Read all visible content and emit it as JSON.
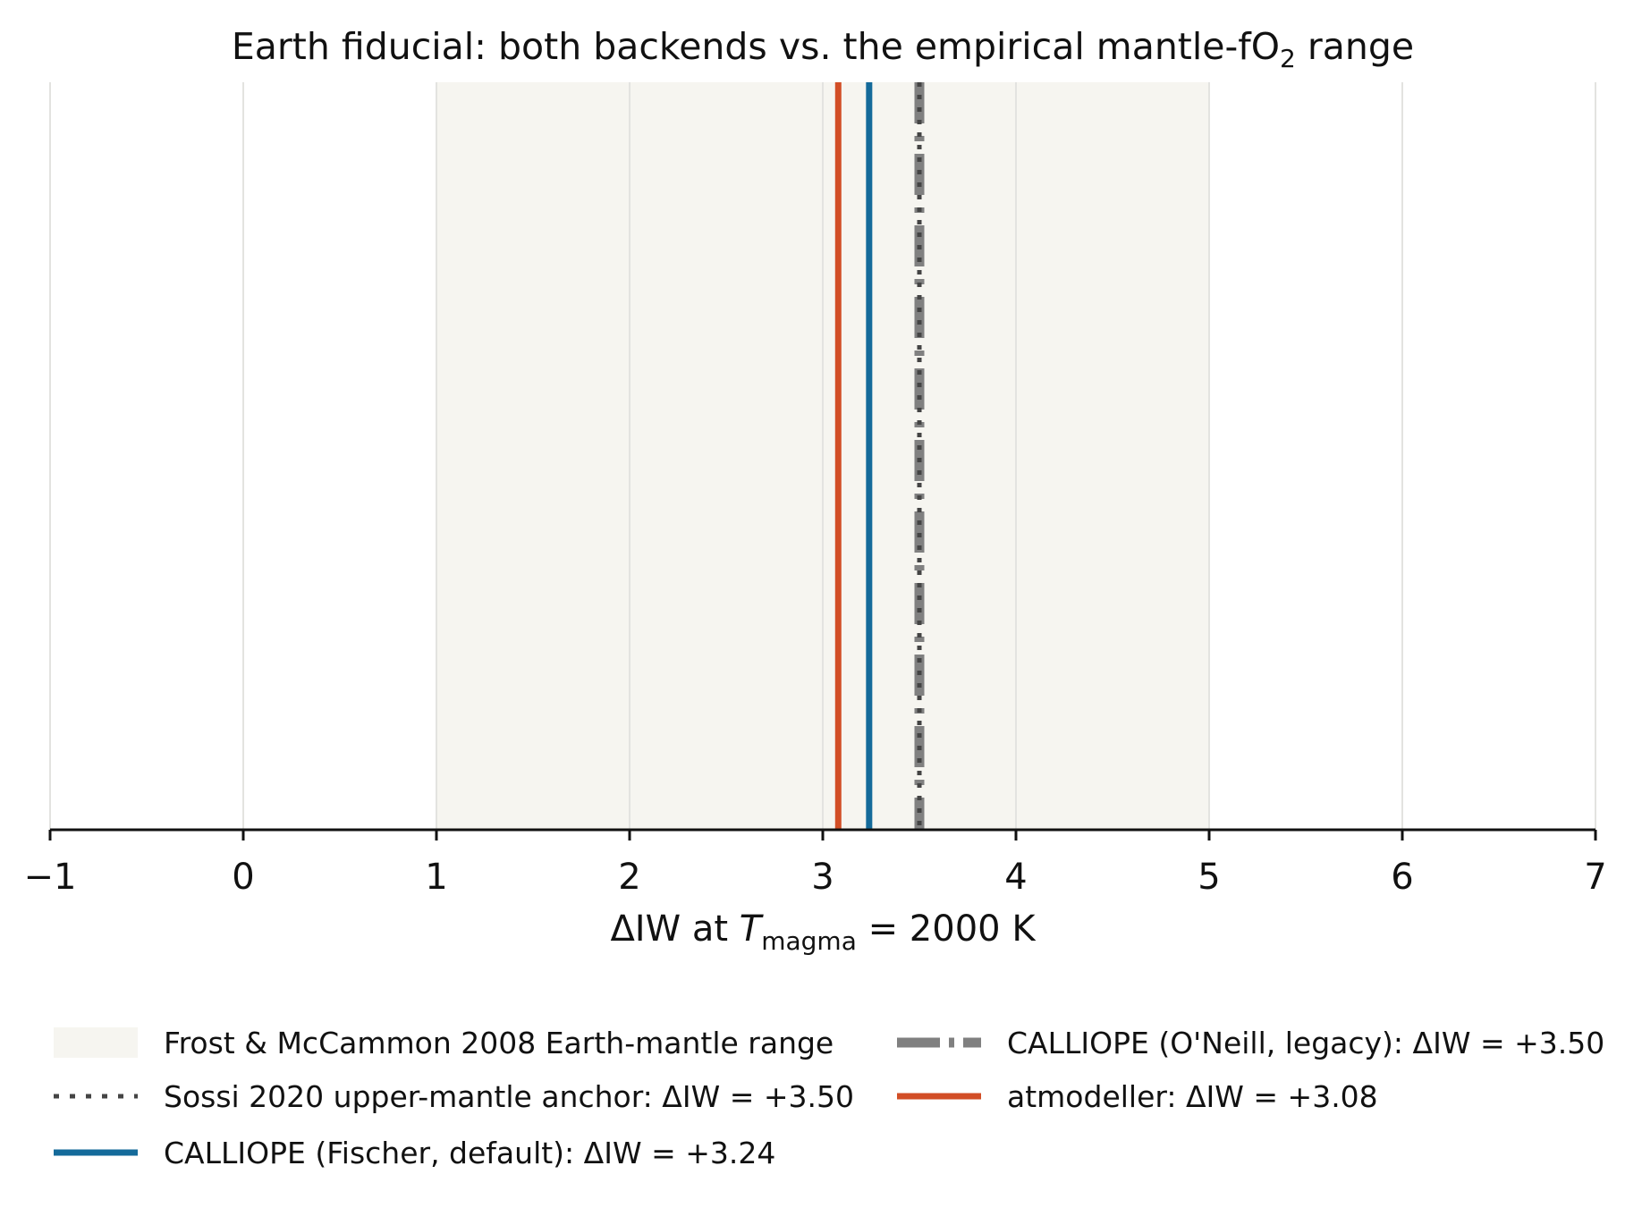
{
  "chart_data": {
    "type": "line",
    "title": "Earth fiducial: both backends vs. the empirical mantle-fO₂ range",
    "xlabel": "ΔIW at T_magma = 2000 K",
    "xlabel_parts": {
      "prefix": "ΔIW at ",
      "symbol": "T",
      "subscript": "magma",
      "suffix": " =  2000 K"
    },
    "xlim": [
      -1,
      7
    ],
    "xticks": [
      -1,
      0,
      1,
      2,
      3,
      4,
      5,
      6,
      7
    ],
    "xtick_labels": [
      "−1",
      "0",
      "1",
      "2",
      "3",
      "4",
      "5",
      "6",
      "7"
    ],
    "yaxis_visible": false,
    "grid": {
      "x": true,
      "y": false
    },
    "legend_placement": "bottom",
    "shaded_range": {
      "name": "Frost & McCammon 2008 Earth-mantle range",
      "x": [
        1,
        5
      ],
      "color": "#f6f5f0"
    },
    "series": [
      {
        "name": "Sossi 2020 upper-mantle anchor: ΔIW = +3.50",
        "x": 3.5,
        "style": "dotted",
        "color": "#444444"
      },
      {
        "name": "CALLIOPE (Fischer, default): ΔIW = +3.24",
        "x": 3.24,
        "style": "solid",
        "color": "#146a9a"
      },
      {
        "name": "CALLIOPE (O'Neill, legacy): ΔIW = +3.50",
        "x": 3.5,
        "style": "dashdot",
        "color": "#808080"
      },
      {
        "name": "atmodeller: ΔIW = +3.08",
        "x": 3.08,
        "style": "solid",
        "color": "#d24e26"
      }
    ]
  }
}
